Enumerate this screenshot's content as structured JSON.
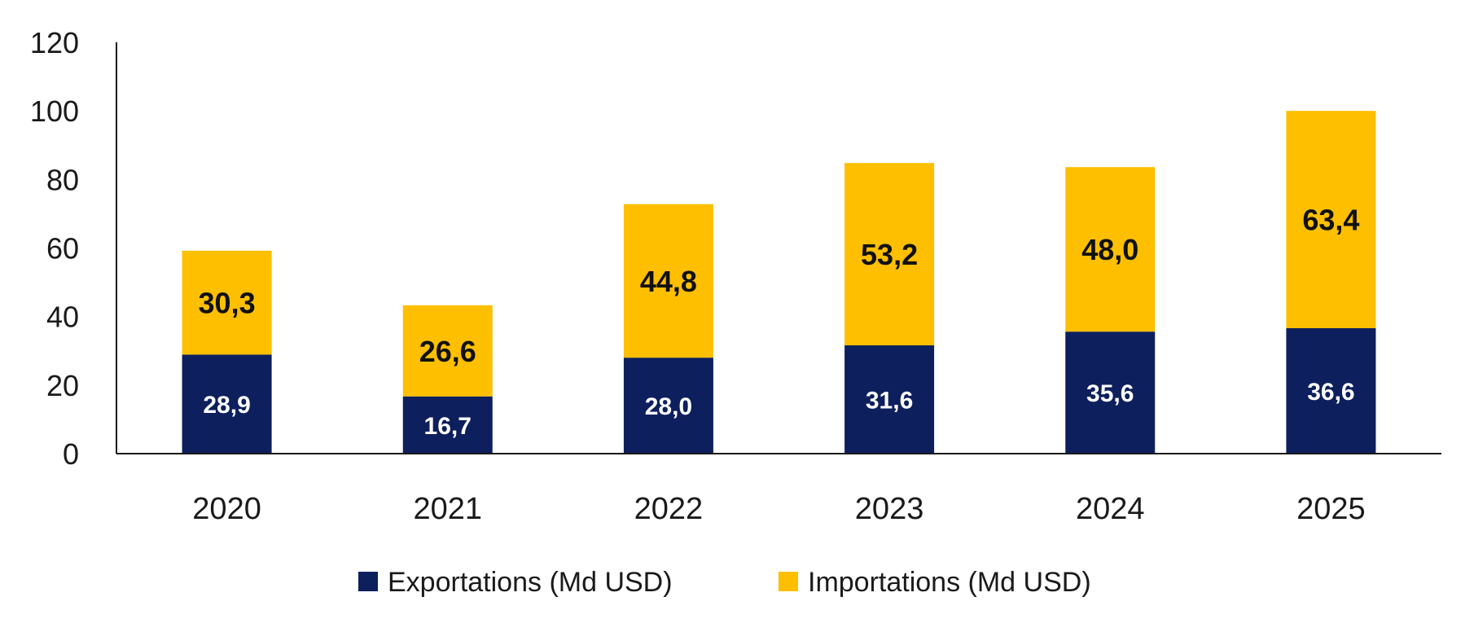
{
  "chart_data": {
    "type": "bar",
    "stacked": true,
    "categories": [
      "2020",
      "2021",
      "2022",
      "2023",
      "2024",
      "2025"
    ],
    "series": [
      {
        "name": "Exportations (Md USD)",
        "color": "#0d1f5c",
        "values": [
          28.9,
          16.7,
          28.0,
          31.6,
          35.6,
          36.6
        ],
        "labels": [
          "28,9",
          "16,7",
          "28,0",
          "31,6",
          "35,6",
          "36,6"
        ]
      },
      {
        "name": "Importations (Md USD)",
        "color": "#fdbf00",
        "values": [
          30.3,
          26.6,
          44.8,
          53.2,
          48.0,
          63.4
        ],
        "labels": [
          "30,3",
          "26,6",
          "44,8",
          "53,2",
          "48,0",
          "63,4"
        ]
      }
    ],
    "ylim": [
      0,
      120
    ],
    "yticks": [
      0,
      20,
      40,
      60,
      80,
      100,
      120
    ],
    "grid": false,
    "legend_position": "bottom"
  }
}
